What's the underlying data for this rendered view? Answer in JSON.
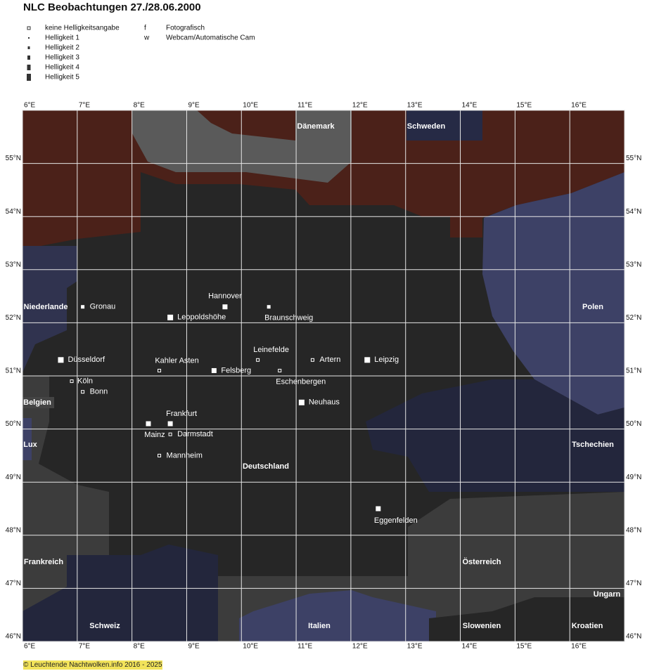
{
  "title": "NLC Beobachtungen 27./28.06.2000",
  "legend": {
    "brightness": [
      "keine Helligkeitsangabe",
      "Helligkeit 1",
      "Helligkeit 2",
      "Helligkeit 3",
      "Helligkeit 4",
      "Helligkeit 5"
    ],
    "types": [
      {
        "key": "f",
        "label": "Fotografisch"
      },
      {
        "key": "w",
        "label": "Webcam/Automatische Cam"
      }
    ]
  },
  "map": {
    "xlim": [
      6,
      17
    ],
    "ylim": [
      46,
      56
    ],
    "lon_ticks": [
      {
        "value": 6,
        "label": "6°E"
      },
      {
        "value": 7,
        "label": "7°E"
      },
      {
        "value": 8,
        "label": "8°E"
      },
      {
        "value": 9,
        "label": "9°E"
      },
      {
        "value": 10,
        "label": "10°E"
      },
      {
        "value": 11,
        "label": "11°E"
      },
      {
        "value": 12,
        "label": "12°E"
      },
      {
        "value": 13,
        "label": "13°E"
      },
      {
        "value": 14,
        "label": "14°E"
      },
      {
        "value": 15,
        "label": "15°E"
      },
      {
        "value": 16,
        "label": "16°E"
      }
    ],
    "lat_ticks": [
      {
        "value": 55,
        "label": "55°N"
      },
      {
        "value": 54,
        "label": "54°N"
      },
      {
        "value": 53,
        "label": "53°N"
      },
      {
        "value": 52,
        "label": "52°N"
      },
      {
        "value": 51,
        "label": "51°N"
      },
      {
        "value": 50,
        "label": "50°N"
      },
      {
        "value": 49,
        "label": "49°N"
      },
      {
        "value": 48,
        "label": "48°N"
      },
      {
        "value": 47,
        "label": "47°N"
      },
      {
        "value": 46,
        "label": "46°N"
      }
    ],
    "countries": [
      "Dänemark",
      "Schweden",
      "Niederlande",
      "Polen",
      "Belgien",
      "Lux",
      "Tschechien",
      "Deutschland",
      "Frankreich",
      "Österreich",
      "Ungarn",
      "Schweiz",
      "Italien",
      "Slowenien",
      "Kroatien"
    ],
    "sites": [
      {
        "name": "Gronau",
        "lon": 7.1,
        "lat": 52.3,
        "brightness": 2
      },
      {
        "name": "Hannover",
        "lon": 9.7,
        "lat": 52.3,
        "brightness": 3
      },
      {
        "name": "Braunschweig",
        "lon": 10.5,
        "lat": 52.3,
        "brightness": 2
      },
      {
        "name": "Leopoldshöhe",
        "lon": 8.7,
        "lat": 52.1,
        "brightness": 4
      },
      {
        "name": "Düsseldorf",
        "lon": 6.7,
        "lat": 51.3,
        "brightness": 4
      },
      {
        "name": "Kahler Asten",
        "lon": 8.5,
        "lat": 51.1,
        "brightness": null
      },
      {
        "name": "Felsberg",
        "lon": 9.5,
        "lat": 51.1,
        "brightness": 3
      },
      {
        "name": "Leinefelde",
        "lon": 10.3,
        "lat": 51.3,
        "brightness": null
      },
      {
        "name": "Eschenbergen",
        "lon": 10.7,
        "lat": 51.1,
        "brightness": null
      },
      {
        "name": "Artern",
        "lon": 11.3,
        "lat": 51.3,
        "brightness": null
      },
      {
        "name": "Leipzig",
        "lon": 12.3,
        "lat": 51.3,
        "brightness": 4
      },
      {
        "name": "Köln",
        "lon": 6.9,
        "lat": 50.9,
        "brightness": null
      },
      {
        "name": "Bonn",
        "lon": 7.1,
        "lat": 50.7,
        "brightness": null
      },
      {
        "name": "Neuhaus",
        "lon": 11.1,
        "lat": 50.5,
        "brightness": 4
      },
      {
        "name": "Frankfurt",
        "lon": 8.7,
        "lat": 50.1,
        "brightness": 3
      },
      {
        "name": "Mainz",
        "lon": 8.3,
        "lat": 50.1,
        "brightness": 3
      },
      {
        "name": "Darmstadt",
        "lon": 8.7,
        "lat": 49.9,
        "brightness": null
      },
      {
        "name": "Mannheim",
        "lon": 8.5,
        "lat": 49.5,
        "brightness": null
      },
      {
        "name": "Eggenfelden",
        "lon": 12.5,
        "lat": 48.5,
        "brightness": 3
      }
    ]
  },
  "footer": "© Leuchtende Nachtwolken.info 2016 - 2025"
}
